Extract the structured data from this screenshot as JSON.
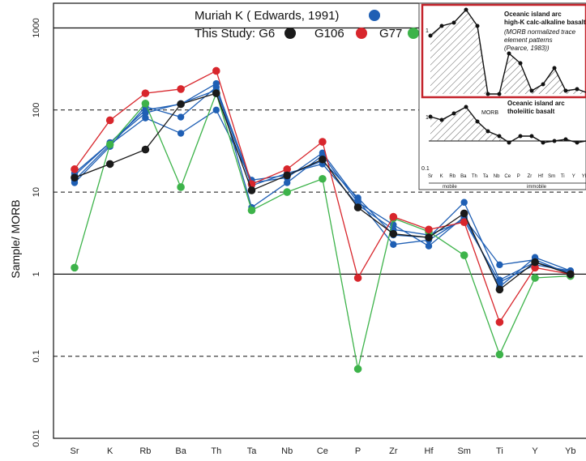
{
  "chart_data": {
    "type": "line",
    "ylabel": "Sample/ MORB",
    "yscale": "log",
    "ylim": [
      0.01,
      2000
    ],
    "yticks": [
      "0.01",
      "0.1",
      "1",
      "10",
      "100",
      "1000"
    ],
    "categories": [
      "Sr",
      "K",
      "Rb",
      "Ba",
      "Th",
      "Ta",
      "Nb",
      "Ce",
      "P",
      "Zr",
      "Hf",
      "Sm",
      "Ti",
      "Y",
      "Yb"
    ],
    "legend": {
      "line1_text": "Muriah K ( Edwards, 1991)",
      "line2_prefix": "This Study: G6",
      "g106_label": "G106",
      "g77_label": "G77"
    },
    "colors": {
      "edwards": "#1f5fb4",
      "g6": "#1a1a1a",
      "g106": "#d8262c",
      "g77": "#3db34a"
    },
    "edwards_series": [
      [
        14,
        38,
        80,
        52,
        100,
        14,
        16,
        24,
        8.5,
        3.0,
        2.8,
        7.5,
        0.85,
        1.4,
        1.05
      ],
      [
        16,
        40,
        100,
        118,
        210,
        6.5,
        13,
        28,
        7.5,
        4.0,
        2.2,
        5.0,
        0.7,
        1.6,
        1.1
      ],
      [
        13,
        36,
        110,
        82,
        190,
        13,
        15,
        30,
        8.0,
        2.3,
        2.6,
        4.8,
        1.3,
        1.5,
        1.0
      ],
      [
        17,
        40,
        92,
        120,
        175,
        12,
        17,
        22,
        7.0,
        3.5,
        3.0,
        4.5,
        0.8,
        1.3,
        1.1
      ]
    ],
    "g6": [
      15,
      22,
      33,
      118,
      160,
      10.5,
      16,
      25,
      6.5,
      3.1,
      2.8,
      5.5,
      0.65,
      1.4,
      1.0
    ],
    "g106": [
      19,
      75,
      160,
      180,
      300,
      12.5,
      19,
      41,
      0.9,
      5.0,
      3.5,
      4.3,
      0.26,
      1.2,
      1.0
    ],
    "g77": [
      1.2,
      38,
      120,
      11.5,
      160,
      6.0,
      10,
      14.5,
      0.07,
      4.8,
      3.3,
      1.7,
      0.105,
      0.9,
      0.95
    ],
    "inset": {
      "title1": "Oceanic island arc",
      "title2": "high-K calc-alkaline basalt",
      "note1": "(MORB normalized trace",
      "note2": "element patterns",
      "note3": "(Pearce, 1983))",
      "lower_title1": "Oceanic island arc",
      "lower_title2": "tholeiitic basalt",
      "morb_label": "MORB",
      "tick_top": "1",
      "tick_mid": "1",
      "tick_low": "0.1",
      "x_labels": [
        "Sr",
        "K",
        "Rb",
        "Ba",
        "Th",
        "Ta",
        "Nb",
        "Ce",
        "P",
        "Zr",
        "Hf",
        "Sm",
        "Ti",
        "Y",
        "Yb"
      ],
      "mobile_label": "mobile",
      "immobile_label": "immobile"
    }
  }
}
